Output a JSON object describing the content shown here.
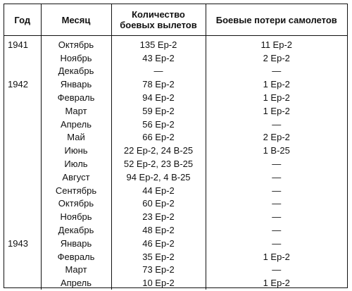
{
  "headers": {
    "year": "Год",
    "month": "Месяц",
    "sorties_line1": "Количество",
    "sorties_line2": "боевых вылетов",
    "losses": "Боевые потери самолетов"
  },
  "rows": [
    {
      "year": "1941",
      "month": "Октябрь",
      "sorties": "135 Ер-2",
      "losses": "11 Ер-2"
    },
    {
      "year": "",
      "month": "Ноябрь",
      "sorties": "43 Ер-2",
      "losses": "2 Ер-2"
    },
    {
      "year": "",
      "month": "Декабрь",
      "sorties": "—",
      "losses": "—"
    },
    {
      "year": "1942",
      "month": "Январь",
      "sorties": "78 Ер-2",
      "losses": "1 Ер-2"
    },
    {
      "year": "",
      "month": "Февраль",
      "sorties": "94 Ер-2",
      "losses": "1 Ер-2"
    },
    {
      "year": "",
      "month": "Март",
      "sorties": "59 Ер-2",
      "losses": "1 Ер-2"
    },
    {
      "year": "",
      "month": "Апрель",
      "sorties": "56 Ер-2",
      "losses": "—"
    },
    {
      "year": "",
      "month": "Май",
      "sorties": "66 Ер-2",
      "losses": "2 Ер-2"
    },
    {
      "year": "",
      "month": "Июнь",
      "sorties": "22 Ер-2, 24 В-25",
      "losses": "1 В-25"
    },
    {
      "year": "",
      "month": "Июль",
      "sorties": "52 Ер-2, 23 В-25",
      "losses": "—"
    },
    {
      "year": "",
      "month": "Август",
      "sorties": "94 Ер-2, 4 В-25",
      "losses": "—"
    },
    {
      "year": "",
      "month": "Сентябрь",
      "sorties": "44 Ер-2",
      "losses": "—"
    },
    {
      "year": "",
      "month": "Октябрь",
      "sorties": "60 Ер-2",
      "losses": "—"
    },
    {
      "year": "",
      "month": "Ноябрь",
      "sorties": "23 Ер-2",
      "losses": "—"
    },
    {
      "year": "",
      "month": "Декабрь",
      "sorties": "48 Ер-2",
      "losses": "—"
    },
    {
      "year": "1943",
      "month": "Январь",
      "sorties": "46 Ер-2",
      "losses": "—"
    },
    {
      "year": "",
      "month": "Февраль",
      "sorties": "35 Ер-2",
      "losses": "1 Ер-2"
    },
    {
      "year": "",
      "month": "Март",
      "sorties": "73 Ер-2",
      "losses": "—"
    },
    {
      "year": "",
      "month": "Апрель",
      "sorties": "10 Ер-2",
      "losses": "1 Ер-2"
    }
  ]
}
